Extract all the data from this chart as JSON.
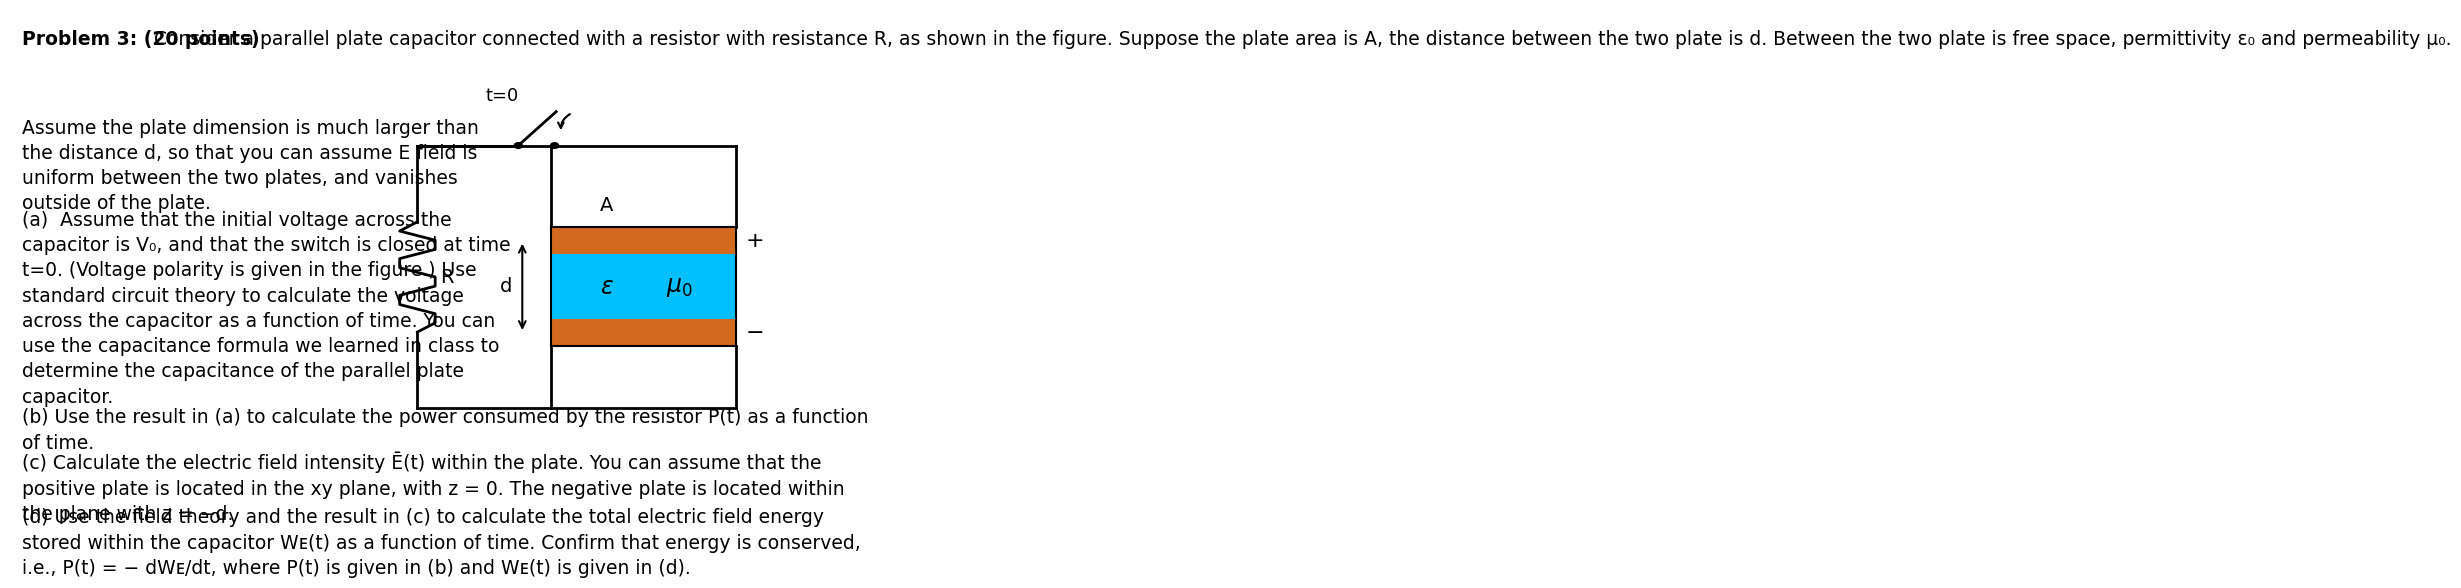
{
  "background_color": "#ffffff",
  "fig_width": 10.41,
  "fig_height": 7.34,
  "plate_color_orange": "#D2691E",
  "plate_color_blue": "#00BFFF",
  "circuit_line_color": "#000000",
  "text_color": "#000000",
  "font_size_body": 13.5,
  "header_bold": "Problem 3: (20 points)",
  "header_normal": " Consider a parallel plate capacitor connected with a resistor with resistance R, as shown in the figure. Suppose the plate area is A, the distance between the two plate is d. Between the two plate is free space, permittivity ε₀ and permeability μ₀.",
  "para1": "Assume the plate dimension is much larger than\nthe distance d, so that you can assume E field is\nuniform between the two plates, and vanishes\noutside of the plate.",
  "para_a": "(a)  Assume that the initial voltage across the\ncapacitor is V₀, and that the switch is closed at time\nt=0. (Voltage polarity is given in the figure.) Use\nstandard circuit theory to calculate the voltage\nacross the capacitor as a function of time. You can\nuse the capacitance formula we learned in class to\ndetermine the capacitance of the parallel plate\ncapacitor.",
  "para_b": "(b) Use the result in (a) to calculate the power consumed by the resistor P(t) as a function\nof time.",
  "para_c": "(c) Calculate the electric field intensity Ē(t) within the plate. You can assume that the\npositive plate is located in the xy plane, with z = 0. The negative plate is located within\nthe plane with z = −d.",
  "para_d": "(d) Use the field theory and the result in (c) to calculate the total electric field energy\nstored within the capacitor Wᴇ(t) as a function of time. Confirm that energy is conserved,\ni.e., P(t) = − dWᴇ/dt, where P(t) is given in (b) and Wᴇ(t) is given in (d)."
}
